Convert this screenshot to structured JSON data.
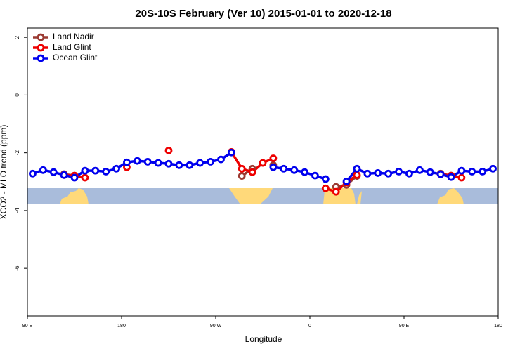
{
  "chart_data": {
    "type": "line",
    "title": "20S-10S February (Ver 10)   2015-01-01 to 2020-12-18",
    "xlabel": "Longitude",
    "ylabel": "XCO2 - MLO trend (ppm)",
    "x": [
      95,
      105,
      115,
      125,
      135,
      145,
      155,
      165,
      175,
      185,
      195,
      205,
      215,
      225,
      235,
      245,
      255,
      265,
      275,
      285,
      295,
      305,
      315,
      325,
      335,
      345,
      355,
      365,
      375,
      385,
      395,
      405,
      415,
      425,
      435,
      445,
      455,
      465,
      475,
      485,
      495,
      505,
      515,
      525,
      535
    ],
    "xlim": [
      90,
      540
    ],
    "xticks": [
      {
        "value": 90,
        "label": "90 E"
      },
      {
        "value": 180,
        "label": "180"
      },
      {
        "value": 270,
        "label": "90 W"
      },
      {
        "value": 360,
        "label": "0"
      },
      {
        "value": 450,
        "label": "90 E"
      },
      {
        "value": 540,
        "label": "180"
      }
    ],
    "ylim": [
      -7.65,
      2.32
    ],
    "yticks": [
      2,
      0,
      -2,
      -4,
      -6
    ],
    "legend": "top-left",
    "series": [
      {
        "name": "Land Nadir",
        "color": "#9b3a32",
        "values": [
          null,
          null,
          null,
          -2.74,
          -2.79,
          null,
          null,
          null,
          null,
          null,
          null,
          null,
          null,
          null,
          null,
          null,
          null,
          null,
          null,
          null,
          -2.8,
          -2.55,
          null,
          -2.43,
          null,
          null,
          null,
          null,
          null,
          -3.18,
          -3.11,
          -2.8,
          null,
          null,
          null,
          null,
          null,
          null,
          null,
          -2.72,
          -2.79,
          null,
          null,
          null,
          null
        ]
      },
      {
        "name": "Land Glint",
        "color": "#ee0000",
        "values": [
          null,
          null,
          null,
          -2.77,
          -2.79,
          -2.86,
          null,
          null,
          null,
          -2.5,
          null,
          null,
          null,
          -1.92,
          null,
          null,
          null,
          null,
          null,
          -1.97,
          -2.55,
          -2.67,
          -2.35,
          -2.19,
          null,
          null,
          null,
          null,
          -3.23,
          -3.35,
          -3.03,
          -2.77,
          null,
          null,
          null,
          null,
          null,
          null,
          null,
          -2.74,
          -2.79,
          -2.86,
          null,
          null,
          null
        ]
      },
      {
        "name": "Ocean Glint",
        "color": "#0000ee",
        "values": [
          -2.72,
          -2.6,
          -2.67,
          -2.77,
          -2.86,
          -2.62,
          -2.62,
          -2.65,
          -2.55,
          -2.33,
          -2.28,
          -2.31,
          -2.35,
          -2.38,
          -2.43,
          -2.43,
          -2.35,
          -2.31,
          -2.23,
          -1.99,
          null,
          null,
          null,
          -2.5,
          -2.55,
          -2.6,
          -2.67,
          -2.79,
          -2.91,
          null,
          -2.99,
          -2.55,
          -2.72,
          -2.7,
          -2.72,
          -2.65,
          -2.72,
          -2.6,
          -2.67,
          -2.74,
          -2.84,
          -2.62,
          -2.65,
          -2.65,
          -2.55
        ]
      }
    ]
  }
}
